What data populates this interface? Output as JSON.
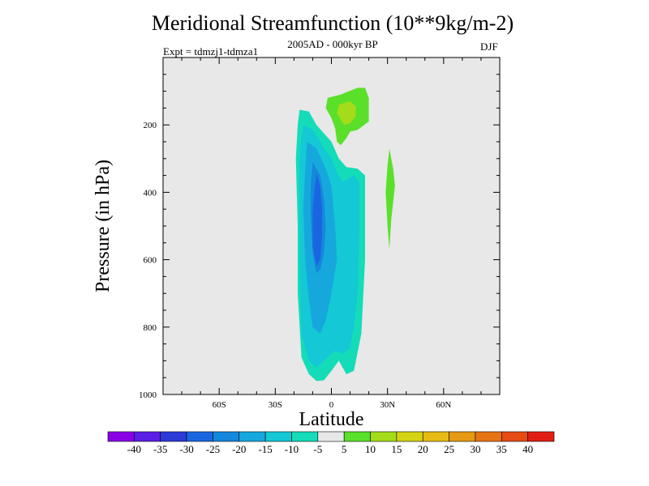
{
  "header": {
    "title": "Meridional Streamfunction (10**9kg/m-2)",
    "subtitle": "2005AD - 000kyr BP",
    "experiment": "Expt = tdmzj1-tdmza1",
    "season": "DJF"
  },
  "chart_data": {
    "type": "contour-filled",
    "title": "Meridional Streamfunction (10**9kg/m-2)",
    "xlabel": "Latitude",
    "ylabel": "Pressure (in hPa)",
    "xlim": [
      -90,
      90
    ],
    "ylim": [
      1000,
      0
    ],
    "x_ticks": [
      {
        "value": -60,
        "label": "60S"
      },
      {
        "value": -30,
        "label": "30S"
      },
      {
        "value": 0,
        "label": "0"
      },
      {
        "value": 30,
        "label": "30N"
      },
      {
        "value": 60,
        "label": "60N"
      }
    ],
    "y_ticks": [
      {
        "value": 200,
        "label": "200"
      },
      {
        "value": 400,
        "label": "400"
      },
      {
        "value": 600,
        "label": "600"
      },
      {
        "value": 800,
        "label": "800"
      },
      {
        "value": 1000,
        "label": "1000"
      }
    ],
    "colorbar": {
      "levels": [
        "-40",
        "-35",
        "-30",
        "-25",
        "-20",
        "-15",
        "-10",
        "-5",
        "5",
        "10",
        "15",
        "20",
        "25",
        "30",
        "35",
        "40"
      ],
      "colors": [
        "#8a00e6",
        "#5a1ee6",
        "#2c3ad8",
        "#1a66e0",
        "#1488dc",
        "#16a8dc",
        "#14c8d6",
        "#14dcb8",
        "#e8e8e8",
        "#5ae02a",
        "#a4dc1a",
        "#d4d414",
        "#e6bc14",
        "#e69a14",
        "#e67414",
        "#e64c14",
        "#e01e14"
      ]
    },
    "regions": [
      {
        "name": "neg-10-outer",
        "color": "#14dcb8",
        "points": [
          [
            -17,
            155
          ],
          [
            -12,
            160
          ],
          [
            -8,
            200
          ],
          [
            0,
            250
          ],
          [
            4,
            300
          ],
          [
            8,
            325
          ],
          [
            14,
            330
          ],
          [
            18,
            350
          ],
          [
            18,
            600
          ],
          [
            16,
            820
          ],
          [
            12,
            930
          ],
          [
            8,
            940
          ],
          [
            4,
            900
          ],
          [
            0,
            930
          ],
          [
            -4,
            958
          ],
          [
            -8,
            960
          ],
          [
            -12,
            940
          ],
          [
            -16,
            890
          ],
          [
            -18,
            700
          ],
          [
            -18,
            500
          ],
          [
            -19,
            300
          ],
          [
            -18,
            200
          ]
        ]
      },
      {
        "name": "neg-15",
        "color": "#14c8d6",
        "points": [
          [
            -15,
            200
          ],
          [
            -10,
            215
          ],
          [
            -5,
            260
          ],
          [
            0,
            300
          ],
          [
            3,
            340
          ],
          [
            6,
            370
          ],
          [
            12,
            350
          ],
          [
            15,
            370
          ],
          [
            15,
            500
          ],
          [
            14,
            700
          ],
          [
            12,
            800
          ],
          [
            10,
            860
          ],
          [
            6,
            880
          ],
          [
            2,
            870
          ],
          [
            -4,
            900
          ],
          [
            -8,
            920
          ],
          [
            -12,
            900
          ],
          [
            -16,
            820
          ],
          [
            -17,
            600
          ],
          [
            -17,
            400
          ],
          [
            -17,
            300
          ],
          [
            -16,
            240
          ]
        ]
      },
      {
        "name": "neg-20",
        "color": "#16a8dc",
        "points": [
          [
            -13,
            250
          ],
          [
            -8,
            270
          ],
          [
            -3,
            330
          ],
          [
            0,
            380
          ],
          [
            2,
            500
          ],
          [
            3,
            600
          ],
          [
            0,
            700
          ],
          [
            -3,
            780
          ],
          [
            -6,
            820
          ],
          [
            -10,
            800
          ],
          [
            -12,
            720
          ],
          [
            -14,
            600
          ],
          [
            -15,
            450
          ],
          [
            -14,
            330
          ]
        ]
      },
      {
        "name": "neg-25",
        "color": "#1488dc",
        "points": [
          [
            -10,
            310
          ],
          [
            -6,
            350
          ],
          [
            -4,
            420
          ],
          [
            -3,
            500
          ],
          [
            -4,
            580
          ],
          [
            -6,
            630
          ],
          [
            -8,
            640
          ],
          [
            -10,
            580
          ],
          [
            -11,
            470
          ],
          [
            -11,
            380
          ]
        ]
      },
      {
        "name": "neg-30",
        "color": "#1a66e0",
        "points": [
          [
            -8,
            345
          ],
          [
            -6,
            380
          ],
          [
            -5,
            450
          ],
          [
            -5,
            530
          ],
          [
            -6,
            600
          ],
          [
            -8,
            620
          ],
          [
            -10,
            560
          ],
          [
            -10,
            460
          ],
          [
            -9,
            390
          ]
        ]
      },
      {
        "name": "pos-5-upper",
        "color": "#5ae02a",
        "points": [
          [
            -2,
            120
          ],
          [
            5,
            110
          ],
          [
            14,
            90
          ],
          [
            18,
            90
          ],
          [
            20,
            120
          ],
          [
            20,
            190
          ],
          [
            14,
            215
          ],
          [
            10,
            220
          ],
          [
            8,
            240
          ],
          [
            5,
            260
          ],
          [
            3,
            250
          ],
          [
            2,
            210
          ],
          [
            0,
            180
          ],
          [
            -3,
            150
          ]
        ]
      },
      {
        "name": "pos-10-upper",
        "color": "#a4dc1a",
        "points": [
          [
            4,
            140
          ],
          [
            10,
            130
          ],
          [
            13,
            145
          ],
          [
            13,
            175
          ],
          [
            10,
            195
          ],
          [
            7,
            200
          ],
          [
            5,
            185
          ],
          [
            3,
            165
          ]
        ]
      },
      {
        "name": "pos-5-nh",
        "color": "#5ae02a",
        "points": [
          [
            31,
            270
          ],
          [
            33,
            330
          ],
          [
            34,
            380
          ],
          [
            32,
            480
          ],
          [
            31,
            570
          ],
          [
            30,
            500
          ],
          [
            29,
            400
          ],
          [
            30,
            320
          ]
        ]
      }
    ]
  }
}
